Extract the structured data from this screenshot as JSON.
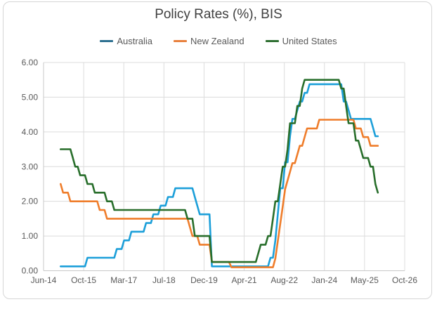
{
  "chart_data": {
    "type": "line",
    "title": "Policy Rates (%), BIS",
    "legend_position": "top",
    "grid": true,
    "x_axis": {
      "tick_labels": [
        "Jun-14",
        "Oct-15",
        "Mar-17",
        "Jul-18",
        "Dec-19",
        "Apr-21",
        "Aug-22",
        "Jan-24",
        "May-25",
        "Oct-26"
      ],
      "axis_start_month": "2014-06",
      "axis_end_month": "2026-10"
    },
    "y_axis": {
      "tick_labels": [
        "0.00",
        "1.00",
        "2.00",
        "3.00",
        "4.00",
        "5.00",
        "6.00"
      ],
      "min": 0,
      "max": 6
    },
    "data_start_month": "2015-01",
    "data_end_month": "2025-11",
    "data_frequency": "monthly",
    "colors": {
      "gridline": "#dcdcdc",
      "axis_line": "#c9c9c9",
      "axis_text": "#595959",
      "title_text": "#404040",
      "card_border": "#d6d6d6"
    },
    "series": [
      {
        "name": "Australia",
        "line_color": "#1c9fd9",
        "legend_color": "#2e7191",
        "values": [
          0.125,
          0.125,
          0.125,
          0.125,
          0.125,
          0.125,
          0.125,
          0.125,
          0.125,
          0.125,
          0.125,
          0.375,
          0.375,
          0.375,
          0.375,
          0.375,
          0.375,
          0.375,
          0.375,
          0.375,
          0.375,
          0.375,
          0.375,
          0.625,
          0.625,
          0.625,
          0.875,
          0.875,
          0.875,
          1.125,
          1.125,
          1.125,
          1.125,
          1.125,
          1.125,
          1.375,
          1.375,
          1.375,
          1.625,
          1.625,
          1.625,
          1.875,
          1.875,
          1.875,
          2.125,
          2.125,
          2.125,
          2.375,
          2.375,
          2.375,
          2.375,
          2.375,
          2.375,
          2.375,
          2.375,
          2.125,
          1.875,
          1.625,
          1.625,
          1.625,
          1.625,
          1.625,
          0.125,
          0.125,
          0.125,
          0.125,
          0.125,
          0.125,
          0.125,
          0.125,
          0.125,
          0.125,
          0.125,
          0.125,
          0.125,
          0.125,
          0.125,
          0.125,
          0.125,
          0.125,
          0.125,
          0.125,
          0.125,
          0.125,
          0.125,
          0.125,
          0.375,
          0.375,
          0.875,
          1.625,
          2.375,
          2.375,
          3.125,
          3.125,
          3.875,
          4.375,
          4.375,
          4.625,
          4.875,
          4.875,
          5.125,
          5.125,
          5.375,
          5.375,
          5.375,
          5.375,
          5.375,
          5.375,
          5.375,
          5.375,
          5.375,
          5.375,
          5.375,
          5.375,
          5.375,
          5.375,
          4.875,
          4.875,
          4.625,
          4.375,
          4.375,
          4.375,
          4.375,
          4.375,
          4.375,
          4.375,
          4.375,
          4.375,
          4.125,
          3.875,
          3.875
        ]
      },
      {
        "name": "New Zealand",
        "line_color": "#ef7d2b",
        "legend_color": "#e8813e",
        "values": [
          2.5,
          2.25,
          2.25,
          2.25,
          2.0,
          2.0,
          2.0,
          2.0,
          2.0,
          2.0,
          2.0,
          2.0,
          2.0,
          2.0,
          2.0,
          2.0,
          1.75,
          1.75,
          1.75,
          1.5,
          1.5,
          1.5,
          1.5,
          1.5,
          1.5,
          1.5,
          1.5,
          1.5,
          1.5,
          1.5,
          1.5,
          1.5,
          1.5,
          1.5,
          1.5,
          1.5,
          1.5,
          1.5,
          1.5,
          1.5,
          1.5,
          1.5,
          1.5,
          1.5,
          1.5,
          1.5,
          1.5,
          1.5,
          1.5,
          1.5,
          1.5,
          1.5,
          1.5,
          1.25,
          1.0,
          1.0,
          1.0,
          0.75,
          0.75,
          0.75,
          0.75,
          0.75,
          0.25,
          0.25,
          0.25,
          0.25,
          0.25,
          0.25,
          0.25,
          0.25,
          0.1,
          0.1,
          0.1,
          0.1,
          0.1,
          0.1,
          0.1,
          0.1,
          0.1,
          0.1,
          0.1,
          0.1,
          0.1,
          0.1,
          0.1,
          0.1,
          0.1,
          0.1,
          0.35,
          0.85,
          1.35,
          1.85,
          2.35,
          2.6,
          2.85,
          3.1,
          3.1,
          3.35,
          3.6,
          3.6,
          3.85,
          4.1,
          4.1,
          4.1,
          4.1,
          4.1,
          4.35,
          4.35,
          4.35,
          4.35,
          4.35,
          4.35,
          4.35,
          4.35,
          4.35,
          4.35,
          4.35,
          4.35,
          4.35,
          4.35,
          4.35,
          4.1,
          4.1,
          4.1,
          3.85,
          3.85,
          3.85,
          3.6,
          3.6,
          3.6,
          3.6
        ]
      },
      {
        "name": "United States",
        "line_color": "#286e2b",
        "legend_color": "#2f7032",
        "values": [
          3.5,
          3.5,
          3.5,
          3.5,
          3.5,
          3.25,
          3.0,
          3.0,
          2.75,
          2.75,
          2.75,
          2.5,
          2.5,
          2.5,
          2.25,
          2.25,
          2.25,
          2.25,
          2.25,
          2.0,
          2.0,
          2.0,
          1.75,
          1.75,
          1.75,
          1.75,
          1.75,
          1.75,
          1.75,
          1.75,
          1.75,
          1.75,
          1.75,
          1.75,
          1.75,
          1.75,
          1.75,
          1.75,
          1.75,
          1.75,
          1.75,
          1.75,
          1.75,
          1.75,
          1.75,
          1.75,
          1.75,
          1.75,
          1.75,
          1.75,
          1.75,
          1.75,
          1.5,
          1.5,
          1.5,
          1.0,
          1.0,
          1.0,
          1.0,
          1.0,
          1.0,
          1.0,
          0.25,
          0.25,
          0.25,
          0.25,
          0.25,
          0.25,
          0.25,
          0.25,
          0.25,
          0.25,
          0.25,
          0.25,
          0.25,
          0.25,
          0.25,
          0.25,
          0.25,
          0.25,
          0.25,
          0.5,
          0.75,
          0.75,
          0.75,
          1.0,
          1.0,
          1.5,
          2.0,
          2.0,
          2.5,
          3.0,
          3.0,
          3.5,
          4.25,
          4.25,
          4.25,
          4.75,
          4.75,
          5.25,
          5.5,
          5.5,
          5.5,
          5.5,
          5.5,
          5.5,
          5.5,
          5.5,
          5.5,
          5.5,
          5.5,
          5.5,
          5.5,
          5.5,
          5.5,
          5.25,
          5.25,
          4.75,
          4.25,
          4.25,
          4.25,
          3.75,
          3.75,
          3.5,
          3.25,
          3.25,
          3.25,
          3.0,
          3.0,
          2.5,
          2.25
        ]
      }
    ]
  }
}
